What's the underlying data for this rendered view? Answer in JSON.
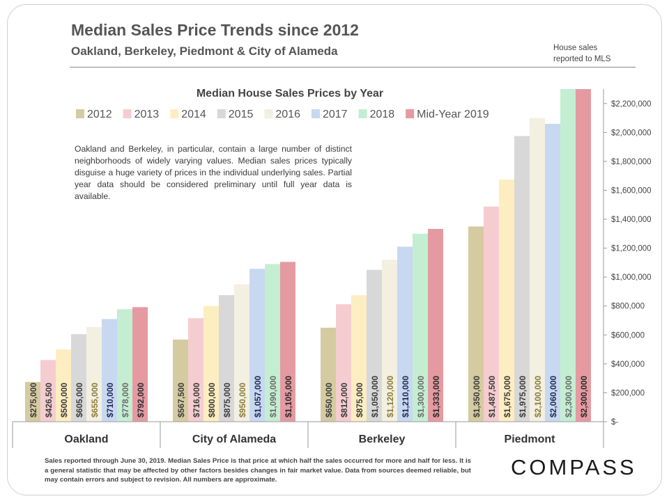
{
  "header": {
    "title": "Median Sales Price Trends since 2012",
    "subtitle": "Oakland,  Berkeley, Piedmont & City of Alameda",
    "note_line1": "House sales",
    "note_line2": "reported to MLS"
  },
  "description": "Oakland and Berkeley, in particular, contain a large number of distinct neighborhoods of widely varying values. Median sales prices typically disguise a huge variety of prices in the individual underlying sales. Partial year data should be considered preliminary until full year data is available.",
  "footer": "Sales reported through June 30, 2019. Median Sales Price is that price at which half the sales occurred for more and half for less. It is a general statistic that may be affected by other factors besides changes in fair market value. Data from sources deemed reliable, but may contain errors and subject to revision.  All numbers are approximate.",
  "logo": "COMPASS",
  "colors": {
    "2012": "#d5cba0",
    "2013": "#f5cdd1",
    "2014": "#fdeec1",
    "2015": "#d8d8d8",
    "2016": "#f3f0e2",
    "2017": "#c8d8f0",
    "2018": "#c4eed2",
    "Mid-Year 2019": "#e59aa2"
  },
  "chart_data": {
    "type": "bar",
    "title": "Median House Sales Prices by Year",
    "categories": [
      "Oakland",
      "City of Alameda",
      "Berkeley",
      "Piedmont"
    ],
    "series": [
      {
        "name": "2012",
        "values": [
          275000,
          567500,
          650000,
          1350000
        ],
        "labels": [
          "$275,000",
          "$567,500",
          "$650,000",
          "$1,350,000"
        ]
      },
      {
        "name": "2013",
        "values": [
          426500,
          716000,
          812000,
          1487500
        ],
        "labels": [
          "$426,500",
          "$716,000",
          "$812,000",
          "$1,487,500"
        ]
      },
      {
        "name": "2014",
        "values": [
          500000,
          800000,
          875000,
          1675000
        ],
        "labels": [
          "$500,000",
          "$800,000",
          "$875,000",
          "$1,675,000"
        ]
      },
      {
        "name": "2015",
        "values": [
          605000,
          875000,
          1050000,
          1975000
        ],
        "labels": [
          "$605,000",
          "$875,000",
          "$1,050,000",
          "$1,975,000"
        ]
      },
      {
        "name": "2016",
        "values": [
          655000,
          950000,
          1120000,
          2100000
        ],
        "labels": [
          "$655,000",
          "$950,000",
          "$1,120,000",
          "$2,100,000"
        ]
      },
      {
        "name": "2017",
        "values": [
          710000,
          1057000,
          1210000,
          2060000
        ],
        "labels": [
          "$710,000",
          "$1,057,000",
          "$1,210,000",
          "$2,060,000"
        ]
      },
      {
        "name": "2018",
        "values": [
          778000,
          1090000,
          1300000,
          2300000
        ],
        "labels": [
          "$778,000",
          "$1,090,000",
          "$1,300,000",
          "$2,300,000"
        ]
      },
      {
        "name": "Mid-Year 2019",
        "values": [
          792000,
          1105000,
          1333000,
          2300000
        ],
        "labels": [
          "$792,000",
          "$1,105,000",
          "$1,333,000",
          "$2,300,000"
        ]
      }
    ],
    "y_ticks": [
      0,
      200000,
      400000,
      600000,
      800000,
      1000000,
      1200000,
      1400000,
      1600000,
      1800000,
      2000000,
      2200000
    ],
    "y_tick_labels": [
      "$-",
      "$200,000",
      "$400,000",
      "$600,000",
      "$800,000",
      "$1,000,000",
      "$1,200,000",
      "$1,400,000",
      "$1,600,000",
      "$1,800,000",
      "$2,000,000",
      "$2,200,000"
    ],
    "ylim": [
      0,
      2300000
    ],
    "y_axis_side": "right",
    "legend_position": "top",
    "grid": false
  }
}
